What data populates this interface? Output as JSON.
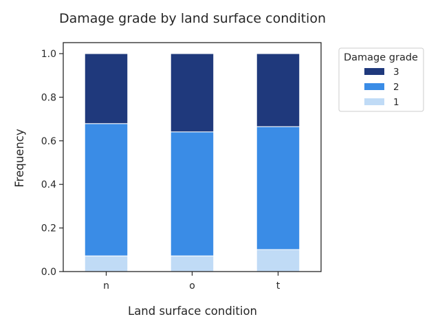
{
  "chart_data": {
    "type": "bar",
    "stacked": true,
    "title": "Damage grade by land surface condition",
    "xlabel": "Land surface condition",
    "ylabel": "Frequency",
    "categories": [
      "n",
      "o",
      "t"
    ],
    "ylim": [
      0,
      1.0
    ],
    "yticks": [
      0.0,
      0.2,
      0.4,
      0.6,
      0.8,
      1.0
    ],
    "ytick_labels": [
      "0.0",
      "0.2",
      "0.4",
      "0.6",
      "0.8",
      "1.0"
    ],
    "series": [
      {
        "name": "1",
        "color": "#c0dbf6",
        "values": [
          0.072,
          0.072,
          0.101
        ]
      },
      {
        "name": "2",
        "color": "#3a8ce6",
        "values": [
          0.607,
          0.569,
          0.564
        ]
      },
      {
        "name": "3",
        "color": "#1f397c",
        "values": [
          0.321,
          0.359,
          0.335
        ]
      }
    ],
    "legend": {
      "title": "Damage grade",
      "placement": "outside-right-top",
      "order": [
        "3",
        "2",
        "1"
      ]
    },
    "grid": false
  }
}
